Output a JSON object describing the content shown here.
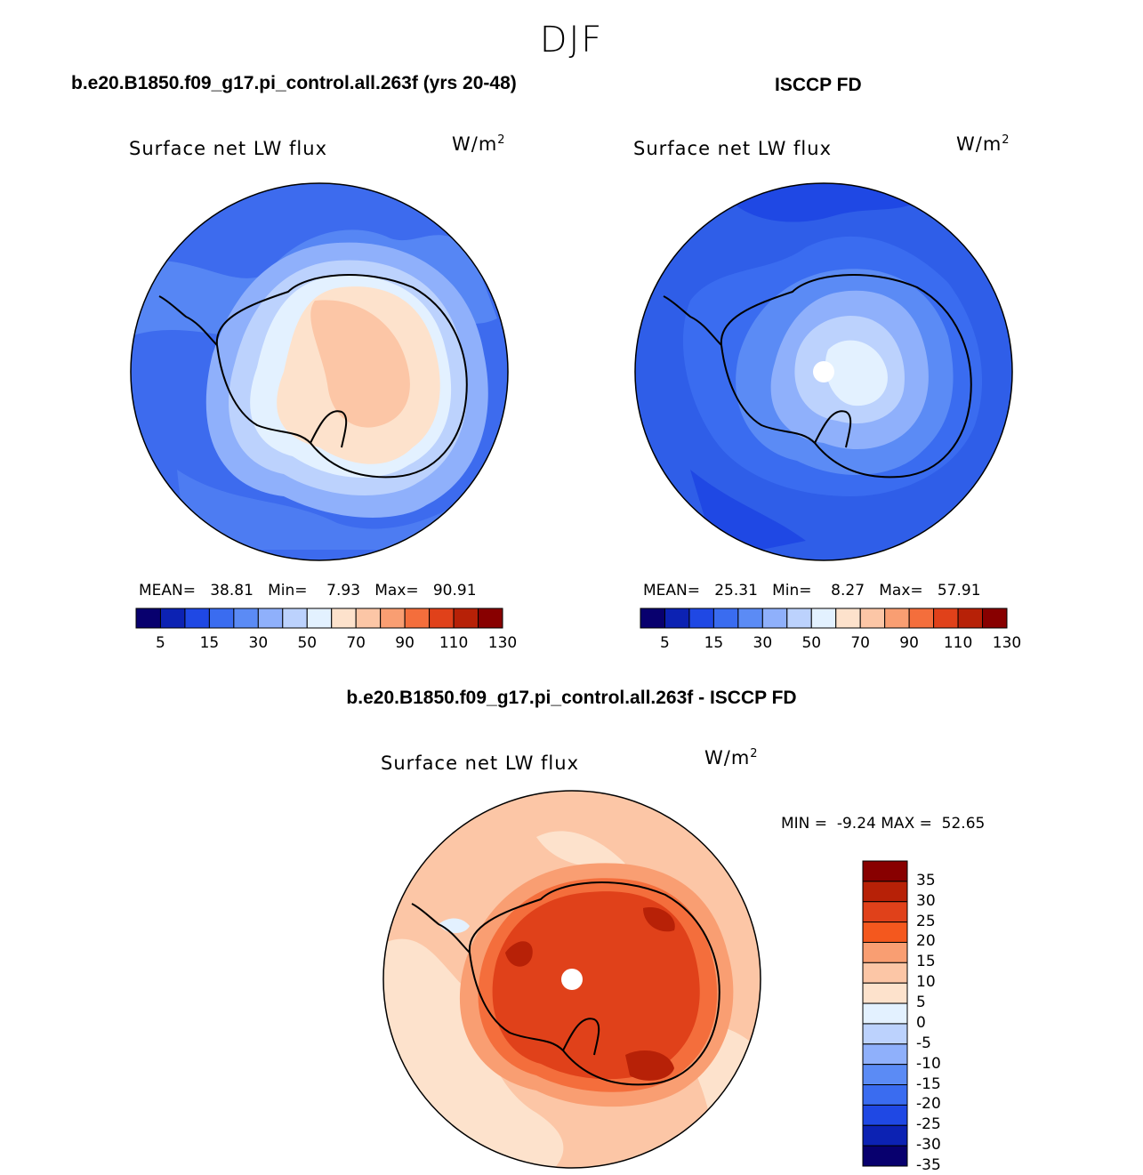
{
  "title": "DJF",
  "panels": [
    {
      "case_title": "b.e20.B1850.f09_g17.pi_control.all.263f (yrs 20-48)",
      "variable": "Surface net LW flux",
      "units_base": "W/m",
      "units_exp": "2",
      "stats": {
        "mean_label": "MEAN=",
        "mean": "38.81",
        "min_label": "Min=",
        "min": "7.93",
        "max_label": "Max=",
        "max": "90.91"
      },
      "colorbar_ticks": [
        "5",
        "15",
        "30",
        "50",
        "70",
        "90",
        "110",
        "130"
      ]
    },
    {
      "case_title": "ISCCP FD",
      "variable": "Surface net LW flux",
      "units_base": "W/m",
      "units_exp": "2",
      "stats": {
        "mean_label": "MEAN=",
        "mean": "25.31",
        "min_label": "Min=",
        "min": "8.27",
        "max_label": "Max=",
        "max": "57.91"
      },
      "colorbar_ticks": [
        "5",
        "15",
        "30",
        "50",
        "70",
        "90",
        "110",
        "130"
      ]
    }
  ],
  "diff_panel": {
    "case_title": "b.e20.B1850.f09_g17.pi_control.all.263f - ISCCP FD",
    "variable": "Surface net LW flux",
    "units_base": "W/m",
    "units_exp": "2",
    "min_label": "MIN =",
    "min": "-9.24",
    "max_label": "MAX =",
    "max": "52.65",
    "colorbar_labels": [
      "35",
      "30",
      "25",
      "20",
      "15",
      "10",
      "5",
      "0",
      "-5",
      "-10",
      "-15",
      "-20",
      "-25",
      "-30",
      "-35"
    ]
  },
  "colors": {
    "abs_scale": [
      "#08006e",
      "#0c22b3",
      "#1f48e4",
      "#3a6cf0",
      "#5b8bf5",
      "#8fb0fb",
      "#bcd2fd",
      "#e3f1ff",
      "#fde2cc",
      "#fcc6a6",
      "#f99e72",
      "#f46e3c",
      "#e0411a",
      "#b72107",
      "#880000"
    ],
    "diff_scale": [
      "#880000",
      "#b72107",
      "#e0411a",
      "#f4581e",
      "#f99e72",
      "#fcc6a6",
      "#fde2cc",
      "#e3f1ff",
      "#bcd2fd",
      "#8fb0fb",
      "#5b8bf5",
      "#3a6cf0",
      "#1f48e4",
      "#0c22b3",
      "#08006e"
    ],
    "ocean_model": "#3d6bee",
    "ocean_obs": "#2f5ee8",
    "ocean_diff": "#fcc6a6"
  }
}
